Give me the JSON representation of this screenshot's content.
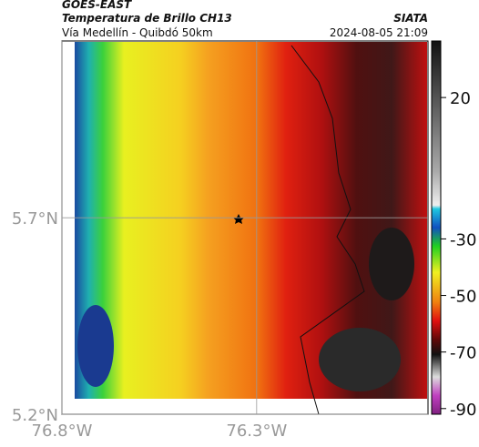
{
  "header": {
    "title": "GOES-EAST",
    "subtitle": "Temperatura de Brillo CH13",
    "source": "SIATA",
    "route": "Vía Medellín - Quibdó 50km",
    "timestamp": "2024-08-05 21:09"
  },
  "map": {
    "xlim": [
      -76.8,
      -75.86
    ],
    "ylim": [
      5.2,
      6.15
    ],
    "xticks": [
      {
        "value": -76.8,
        "label": "76.8°W"
      },
      {
        "value": -76.3,
        "label": "76.3°W"
      }
    ],
    "yticks": [
      {
        "value": 5.2,
        "label": "5.2°N"
      },
      {
        "value": 5.7,
        "label": "5.7°N"
      }
    ]
  },
  "colorbar": {
    "clim": [
      -92,
      40
    ],
    "ticks": [
      20,
      -30,
      -50,
      -70,
      -90
    ]
  }
}
